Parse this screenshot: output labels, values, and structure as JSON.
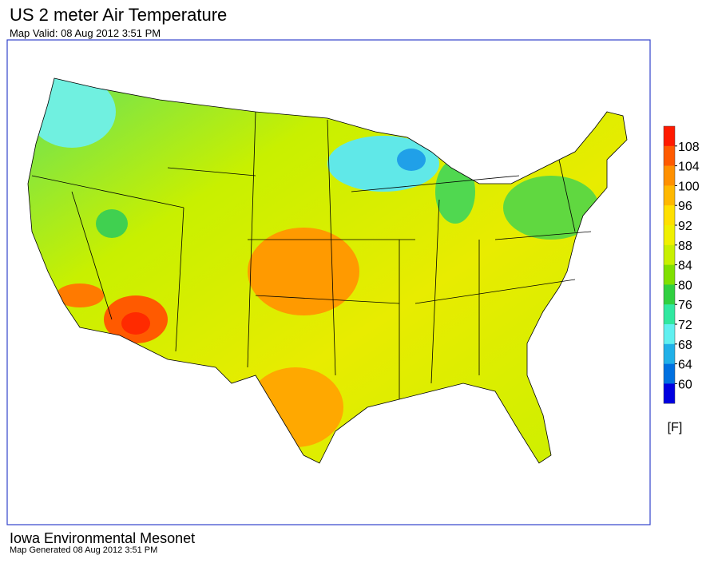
{
  "header": {
    "title": "US 2 meter Air Temperature",
    "subtitle": "Map Valid: 08 Aug 2012 3:51 PM"
  },
  "legend": {
    "ticks": [
      108,
      104,
      100,
      96,
      92,
      88,
      84,
      80,
      76,
      72,
      68,
      64,
      60
    ],
    "colors": [
      "#ff1a00",
      "#ff5a00",
      "#ff9000",
      "#ffb800",
      "#ffe000",
      "#f0f000",
      "#c8f000",
      "#80e000",
      "#30d040",
      "#30e8a0",
      "#60f0f0",
      "#20b0e8",
      "#0070e0",
      "#0000e0"
    ],
    "unit": "[F]"
  },
  "footer": {
    "source": "Iowa Environmental Mesonet",
    "generated": "Map Generated 08 Aug 2012 3:51 PM"
  }
}
